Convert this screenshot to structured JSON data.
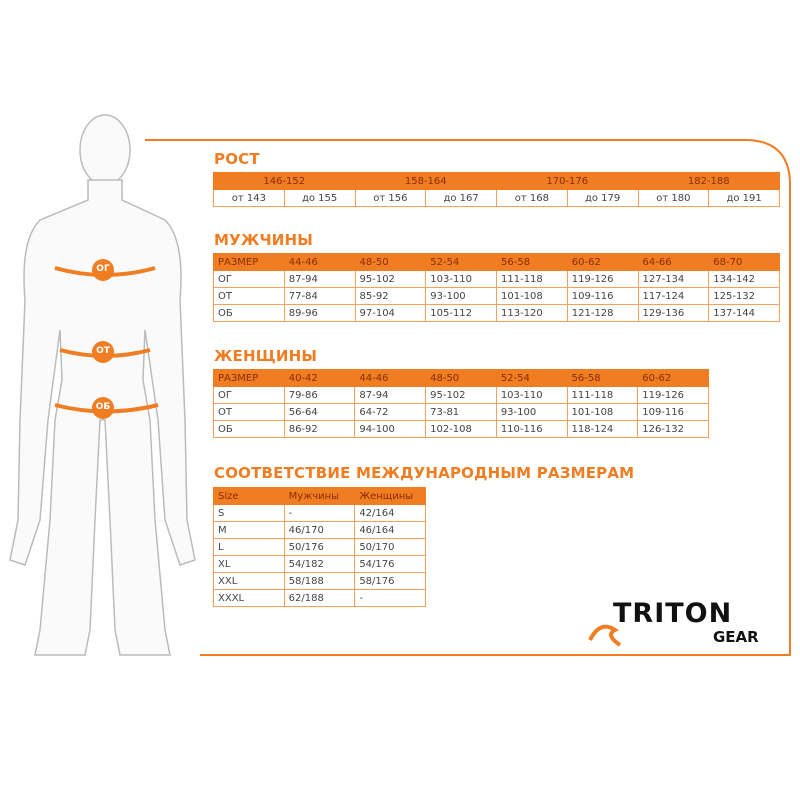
{
  "colors": {
    "accent": "#f07d22",
    "text": "#444444"
  },
  "figure": {
    "labels": [
      "ОГ",
      "ОТ",
      "ОБ"
    ]
  },
  "height": {
    "title": "РОСТ",
    "groups": [
      "146-152",
      "158-164",
      "170-176",
      "182-188"
    ],
    "ranges": [
      "от 143",
      "до 155",
      "от 156",
      "до 167",
      "от 168",
      "до 179",
      "от 180",
      "до 191"
    ]
  },
  "men": {
    "title": "МУЖЧИНЫ",
    "header": [
      "РАЗМЕР",
      "44-46",
      "48-50",
      "52-54",
      "56-58",
      "60-62",
      "64-66",
      "68-70"
    ],
    "rows": [
      [
        "ОГ",
        "87-94",
        "95-102",
        "103-110",
        "111-118",
        "119-126",
        "127-134",
        "134-142"
      ],
      [
        "ОТ",
        "77-84",
        "85-92",
        "93-100",
        "101-108",
        "109-116",
        "117-124",
        "125-132"
      ],
      [
        "ОБ",
        "89-96",
        "97-104",
        "105-112",
        "113-120",
        "121-128",
        "129-136",
        "137-144"
      ]
    ]
  },
  "women": {
    "title": "ЖЕНЩИНЫ",
    "header": [
      "РАЗМЕР",
      "40-42",
      "44-46",
      "48-50",
      "52-54",
      "56-58",
      "60-62"
    ],
    "rows": [
      [
        "ОГ",
        "79-86",
        "87-94",
        "95-102",
        "103-110",
        "111-118",
        "119-126"
      ],
      [
        "ОТ",
        "56-64",
        "64-72",
        "73-81",
        "93-100",
        "101-108",
        "109-116"
      ],
      [
        "ОБ",
        "86-92",
        "94-100",
        "102-108",
        "110-116",
        "118-124",
        "126-132"
      ]
    ]
  },
  "intl": {
    "title": "СООТВЕТСТВИЕ МЕЖДУНАРОДНЫМ РАЗМЕРАМ",
    "header": [
      "Size",
      "Мужчины",
      "Женщины"
    ],
    "rows": [
      [
        "S",
        "-",
        "42/164"
      ],
      [
        "M",
        "46/170",
        "46/164"
      ],
      [
        "L",
        "50/176",
        "50/170"
      ],
      [
        "XL",
        "54/182",
        "54/176"
      ],
      [
        "XXL",
        "58/188",
        "58/176"
      ],
      [
        "XXXL",
        "62/188",
        "-"
      ]
    ]
  },
  "logo": {
    "brand": "TRITON",
    "sub": "GEAR"
  }
}
